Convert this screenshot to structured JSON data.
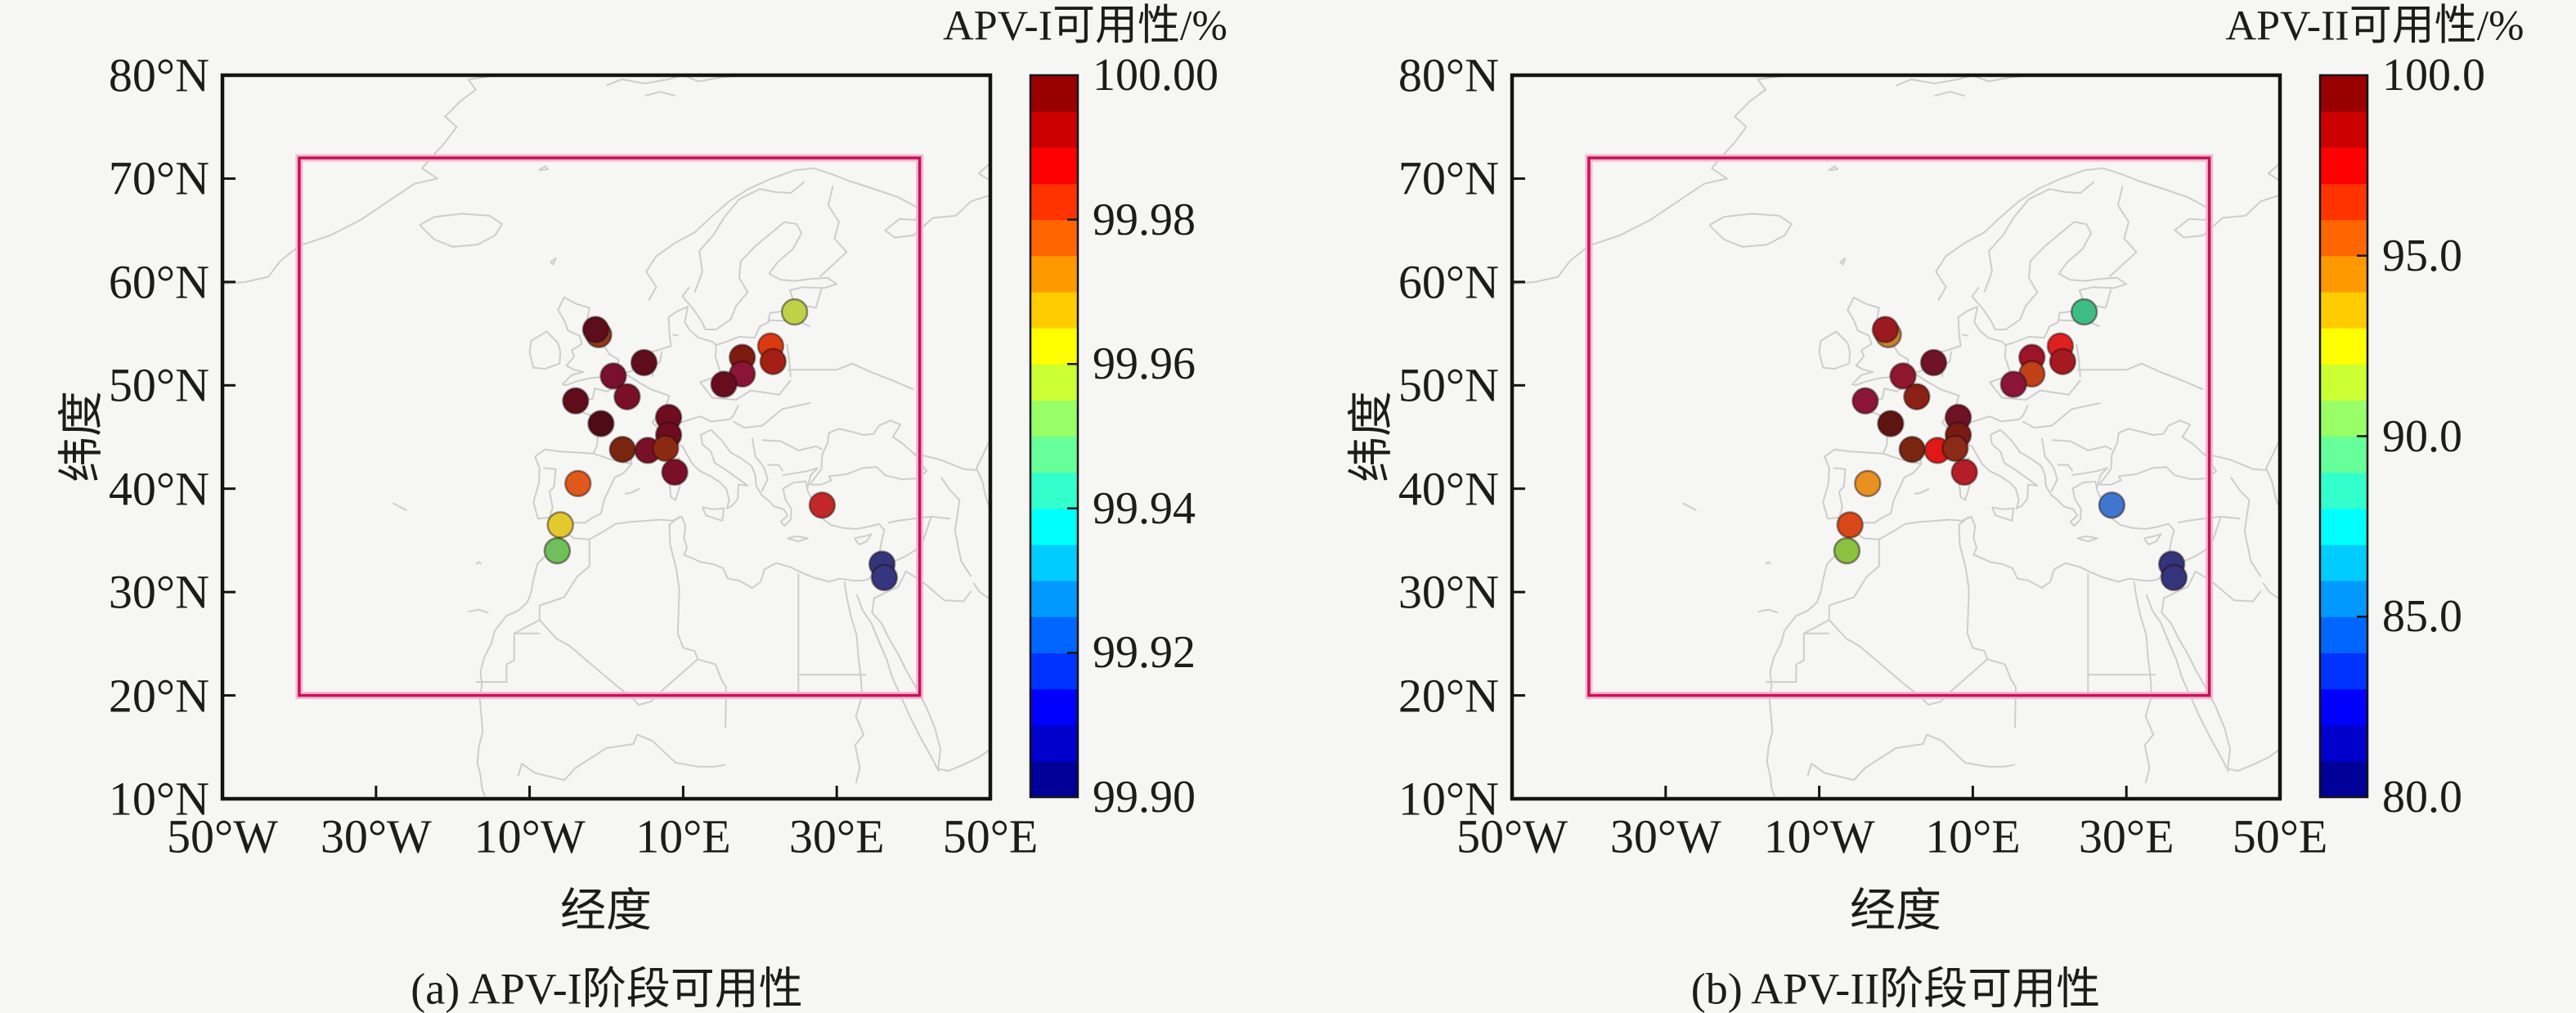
{
  "figure": {
    "background": "#f6f6f4",
    "coastline_color": "#cdcdcd",
    "frame_color": "#141414",
    "study_box_color": "#c4135a",
    "study_box_halo": "#f3b8cf"
  },
  "chart_data": {
    "type": "scatter",
    "subtype": "geographic-station-availability-map",
    "axes": {
      "xlabel": "经度",
      "ylabel": "纬度",
      "xlim": [
        -50,
        50
      ],
      "ylim": [
        10,
        80
      ],
      "grid": false,
      "x_ticks": [
        {
          "lon": -50,
          "label": "50°W"
        },
        {
          "lon": -30,
          "label": "30°W"
        },
        {
          "lon": -10,
          "label": "10°W"
        },
        {
          "lon": 10,
          "label": "10°E"
        },
        {
          "lon": 30,
          "label": "30°E"
        },
        {
          "lon": 50,
          "label": "50°E"
        }
      ],
      "y_ticks": [
        {
          "lat": 10,
          "label": "10°N"
        },
        {
          "lat": 20,
          "label": "20°N"
        },
        {
          "lat": 30,
          "label": "30°N"
        },
        {
          "lat": 40,
          "label": "40°N"
        },
        {
          "lat": 50,
          "label": "50°N"
        },
        {
          "lat": 60,
          "label": "60°N"
        },
        {
          "lat": 70,
          "label": "70°N"
        },
        {
          "lat": 80,
          "label": "80°N"
        }
      ]
    },
    "study_box": {
      "lon_min": -40,
      "lon_max": 40.8,
      "lat_min": 20,
      "lat_max": 72
    },
    "panels": [
      {
        "caption": "(a) APV-I阶段可用性",
        "colorbar_title": "APV-I可用性/%",
        "value_key": "apv1",
        "color_key": "apv1_color",
        "colorbar": {
          "range": [
            99.9,
            100.0
          ],
          "segments": 20,
          "ticks": [
            {
              "value": 100.0,
              "label": "100.00"
            },
            {
              "value": 99.98,
              "label": "99.98"
            },
            {
              "value": 99.96,
              "label": "99.96"
            },
            {
              "value": 99.94,
              "label": "99.94"
            },
            {
              "value": 99.92,
              "label": "99.92"
            },
            {
              "value": 99.9,
              "label": "99.90"
            }
          ]
        }
      },
      {
        "caption": "(b) APV-II阶段可用性",
        "colorbar_title": "APV-II可用性/%",
        "value_key": "apv2",
        "color_key": "apv2_color",
        "colorbar": {
          "range": [
            80.0,
            100.0
          ],
          "segments": 20,
          "ticks": [
            {
              "value": 100.0,
              "label": "100.0"
            },
            {
              "value": 95.0,
              "label": "95.0"
            },
            {
              "value": 90.0,
              "label": "90.0"
            },
            {
              "value": 85.0,
              "label": "85.0"
            },
            {
              "value": 80.0,
              "label": "80.0"
            }
          ]
        }
      }
    ],
    "stations": [
      {
        "lon": -1.0,
        "lat": 54.9,
        "apv1": 99.99,
        "apv1_color": "#8a3a1a",
        "apv2": 93.8,
        "apv2_color": "#c58233"
      },
      {
        "lon": -1.4,
        "lat": 55.4,
        "apv1": 99.996,
        "apv1_color": "#5e0d1a",
        "apv2": 98.8,
        "apv2_color": "#9b1a20"
      },
      {
        "lon": 4.9,
        "lat": 52.2,
        "apv1": 99.997,
        "apv1_color": "#600d1e",
        "apv2": 99.4,
        "apv2_color": "#6e1426"
      },
      {
        "lon": 0.9,
        "lat": 50.9,
        "apv1": 99.994,
        "apv1_color": "#7a1030",
        "apv2": 99.1,
        "apv2_color": "#8f1830"
      },
      {
        "lon": 2.7,
        "lat": 48.9,
        "apv1": 99.994,
        "apv1_color": "#7a1028",
        "apv2": 98.9,
        "apv2_color": "#8b2016"
      },
      {
        "lon": -4.0,
        "lat": 48.5,
        "apv1": 99.996,
        "apv1_color": "#600d1a",
        "apv2": 99.2,
        "apv2_color": "#8b1538"
      },
      {
        "lon": -0.7,
        "lat": 46.3,
        "apv1": 99.997,
        "apv1_color": "#4e0d16",
        "apv2": 99.4,
        "apv2_color": "#5e1410"
      },
      {
        "lon": 2.1,
        "lat": 43.8,
        "apv1": 99.989,
        "apv1_color": "#7a2510",
        "apv2": 99.0,
        "apv2_color": "#7a2510"
      },
      {
        "lon": 8.1,
        "lat": 46.9,
        "apv1": 99.996,
        "apv1_color": "#6e0d20",
        "apv2": 99.3,
        "apv2_color": "#701225"
      },
      {
        "lon": 8.1,
        "lat": 45.2,
        "apv1": 99.995,
        "apv1_color": "#6e0d20",
        "apv2": 99.3,
        "apv2_color": "#7a1a14"
      },
      {
        "lon": 5.4,
        "lat": 43.7,
        "apv1": 99.994,
        "apv1_color": "#7a1028",
        "apv2": 96.8,
        "apv2_color": "#e01818"
      },
      {
        "lon": 7.7,
        "lat": 43.9,
        "apv1": 99.991,
        "apv1_color": "#8b2a10",
        "apv2": 98.9,
        "apv2_color": "#8b2a16"
      },
      {
        "lon": 8.9,
        "lat": 41.6,
        "apv1": 99.994,
        "apv1_color": "#7a1028",
        "apv2": 97.4,
        "apv2_color": "#b51e28"
      },
      {
        "lon": -3.7,
        "lat": 40.5,
        "apv1": 99.972,
        "apv1_color": "#e0591b",
        "apv2": 94.0,
        "apv2_color": "#e89020"
      },
      {
        "lon": -6.0,
        "lat": 36.5,
        "apv1": 99.963,
        "apv1_color": "#e3c92e",
        "apv2": 95.5,
        "apv2_color": "#d84818"
      },
      {
        "lon": -6.4,
        "lat": 34.0,
        "apv1": 99.952,
        "apv1_color": "#6fbf5a",
        "apv2": 91.8,
        "apv2_color": "#8cc040"
      },
      {
        "lon": 17.7,
        "lat": 52.7,
        "apv1": 99.991,
        "apv1_color": "#7e1a10",
        "apv2": 99.0,
        "apv2_color": "#9b1428"
      },
      {
        "lon": 17.7,
        "lat": 51.1,
        "apv1": 99.993,
        "apv1_color": "#8b1538",
        "apv2": 96.0,
        "apv2_color": "#c04018"
      },
      {
        "lon": 21.4,
        "lat": 53.8,
        "apv1": 99.978,
        "apv1_color": "#d93a10",
        "apv2": 96.8,
        "apv2_color": "#e02020"
      },
      {
        "lon": 21.7,
        "lat": 52.3,
        "apv1": 99.987,
        "apv1_color": "#a52014",
        "apv2": 97.6,
        "apv2_color": "#a51a20"
      },
      {
        "lon": 24.5,
        "lat": 57.1,
        "apv1": 99.96,
        "apv1_color": "#bfd148",
        "apv2": 89.6,
        "apv2_color": "#3cbe82"
      },
      {
        "lon": 15.3,
        "lat": 50.1,
        "apv1": 99.996,
        "apv1_color": "#680d1e",
        "apv2": 99.2,
        "apv2_color": "#8b1538"
      },
      {
        "lon": 28.1,
        "lat": 38.4,
        "apv1": 99.982,
        "apv1_color": "#c22828",
        "apv2": 85.6,
        "apv2_color": "#4076d0"
      },
      {
        "lon": 35.9,
        "lat": 32.7,
        "apv1": 99.906,
        "apv1_color": "#35357e",
        "apv2": 81.2,
        "apv2_color": "#34347c"
      },
      {
        "lon": 36.2,
        "lat": 31.4,
        "apv1": 99.906,
        "apv1_color": "#353580",
        "apv2": 81.0,
        "apv2_color": "#34347c"
      }
    ]
  }
}
